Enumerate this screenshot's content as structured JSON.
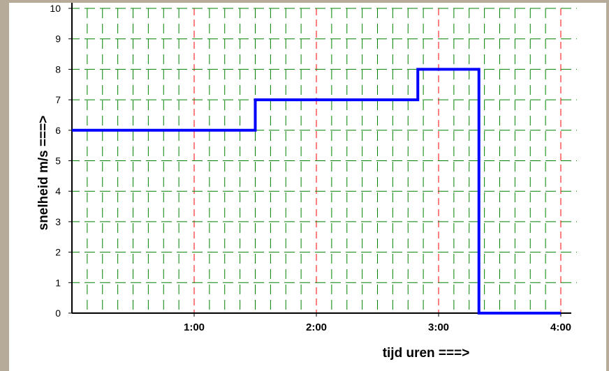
{
  "chart_data": {
    "type": "line",
    "step": true,
    "xlabel": "tijd uren ===>",
    "ylabel": "snelheid m/s ===>",
    "x_tick_labels": [
      "1:00",
      "2:00",
      "3:00",
      "4:00"
    ],
    "x_ticks_hours": [
      1,
      2,
      3,
      4
    ],
    "y_ticks": [
      0,
      1,
      2,
      3,
      4,
      5,
      6,
      7,
      8,
      9,
      10
    ],
    "xlim": [
      0,
      4
    ],
    "ylim": [
      0,
      10
    ],
    "grid": true,
    "series": [
      {
        "color": "#0000ff",
        "points": [
          {
            "x": 0,
            "y": 6
          },
          {
            "x": 1.5,
            "y": 6
          },
          {
            "x": 1.5,
            "y": 7
          },
          {
            "x": 2.83,
            "y": 7
          },
          {
            "x": 2.83,
            "y": 8
          },
          {
            "x": 3.33,
            "y": 8
          },
          {
            "x": 3.33,
            "y": 0
          },
          {
            "x": 4,
            "y": 0
          }
        ]
      }
    ],
    "colors": {
      "grid_minor": "#008000",
      "grid_major": "#ff0000",
      "axis": "#000000",
      "frame": "#b5ab98"
    }
  }
}
